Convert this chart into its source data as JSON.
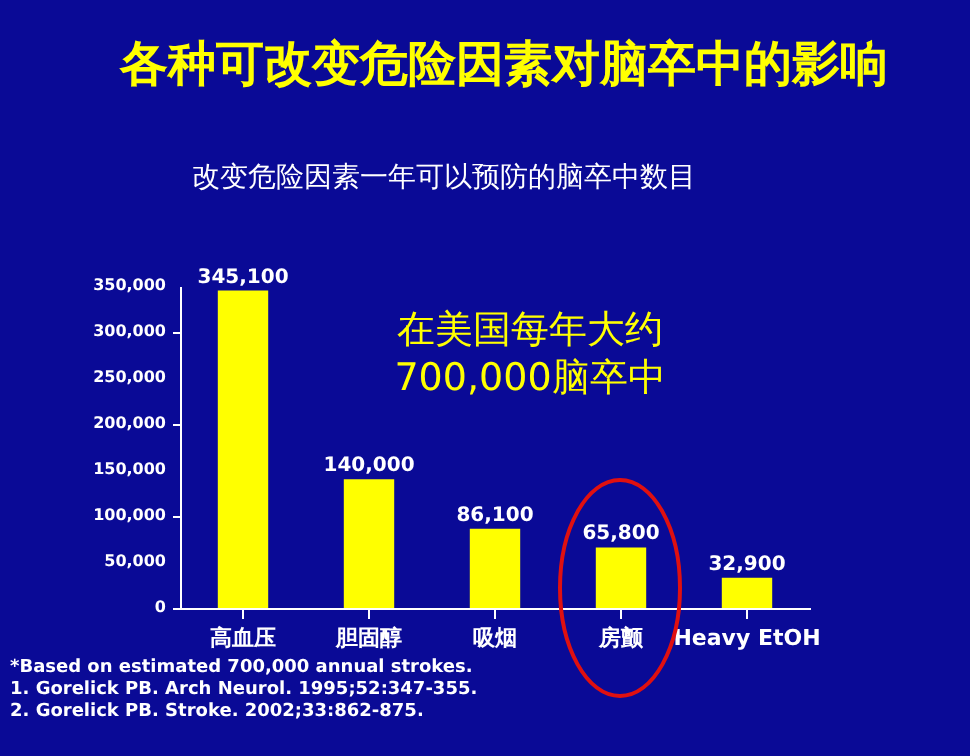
{
  "chart_data": {
    "type": "bar",
    "title": "各种可改变危险因素对脑卒中的影响",
    "subtitle": "改变危险因素一年可以预防的脑卒中数目",
    "categories": [
      "高血压",
      "胆固醇",
      "吸烟",
      "房颤",
      "Heavy EtOH"
    ],
    "values": [
      345100,
      140000,
      86100,
      65800,
      32900
    ],
    "color": "#ffff00",
    "ylim": [
      0,
      350000
    ],
    "yticks": [
      {
        "value": 0,
        "label": "0"
      },
      {
        "value": 50000,
        "label": "50,000"
      },
      {
        "value": 100000,
        "label": "100,000"
      },
      {
        "value": 150000,
        "label": "150,000"
      },
      {
        "value": 200000,
        "label": "200,000"
      },
      {
        "value": 250000,
        "label": "250,000"
      },
      {
        "value": 300000,
        "label": "300,000"
      },
      {
        "value": 350000,
        "label": "350,000"
      }
    ],
    "value_labels": [
      "345,100",
      "140,000",
      "86,100",
      "65,800",
      "32,900"
    ],
    "grid": false,
    "annotations": [
      "在美国每年大约\n700,000脑卒中",
      "*Based on estimated 700,000 annual strokes.",
      "1. Gorelick PB. Arch Neurol. 1995;52:347-355.",
      "2. Gorelick PB. Stroke. 2002;33:862-875."
    ]
  }
}
